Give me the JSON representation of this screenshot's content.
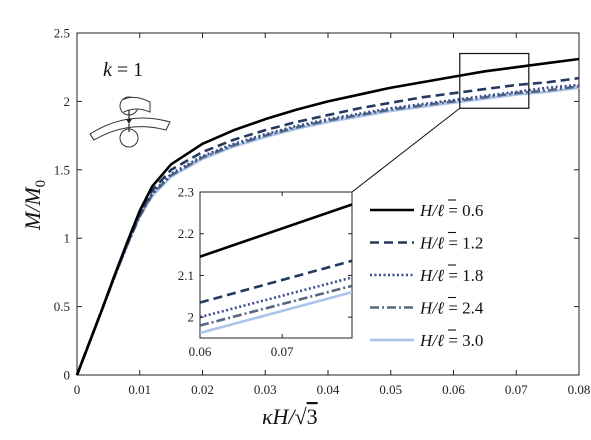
{
  "chart_data": {
    "type": "line",
    "xlabel": {
      "pre": "κH/",
      "root": "√",
      "post": "3"
    },
    "ylabel": {
      "base": "M/M",
      "sub": "0"
    },
    "xlim": [
      0,
      0.08
    ],
    "ylim": [
      0,
      2.5
    ],
    "x_ticks": [
      0,
      0.01,
      0.02,
      0.03,
      0.04,
      0.05,
      0.06,
      0.07,
      0.08
    ],
    "x_tick_labels": [
      "0",
      "0.01",
      "0.02",
      "0.03",
      "0.04",
      "0.05",
      "0.06",
      "0.07",
      "0.08"
    ],
    "y_ticks": [
      0,
      0.5,
      1,
      1.5,
      2,
      2.5
    ],
    "y_tick_labels": [
      "0",
      "0.5",
      "1",
      "1.5",
      "2",
      "2.5"
    ],
    "grid": false,
    "legend_position": "right",
    "annotation": {
      "lhs": "k",
      "eq": " = ",
      "rhs": "1"
    },
    "series": [
      {
        "name": "H/ℓ̄ = 0.6",
        "label_lhs": "H/ℓ",
        "label_rhs": " = 0.6",
        "color": "#000000",
        "style": "solid",
        "x": [
          0,
          0.002,
          0.004,
          0.006,
          0.008,
          0.01,
          0.012,
          0.015,
          0.02,
          0.025,
          0.03,
          0.035,
          0.04,
          0.045,
          0.05,
          0.055,
          0.06,
          0.065,
          0.07,
          0.075,
          0.08
        ],
        "y": [
          0,
          0.24,
          0.48,
          0.73,
          0.97,
          1.2,
          1.38,
          1.54,
          1.69,
          1.79,
          1.87,
          1.94,
          2.0,
          2.05,
          2.1,
          2.14,
          2.18,
          2.22,
          2.25,
          2.28,
          2.31
        ]
      },
      {
        "name": "H/ℓ̄ = 1.2",
        "label_lhs": "H/ℓ",
        "label_rhs": " = 1.2",
        "color": "#23395d",
        "style": "dashed",
        "x": [
          0,
          0.002,
          0.004,
          0.006,
          0.008,
          0.01,
          0.012,
          0.015,
          0.02,
          0.025,
          0.03,
          0.035,
          0.04,
          0.045,
          0.05,
          0.055,
          0.06,
          0.065,
          0.07,
          0.075,
          0.08
        ],
        "y": [
          0,
          0.24,
          0.48,
          0.73,
          0.96,
          1.18,
          1.35,
          1.5,
          1.63,
          1.72,
          1.79,
          1.85,
          1.9,
          1.95,
          1.99,
          2.03,
          2.06,
          2.09,
          2.12,
          2.14,
          2.17
        ]
      },
      {
        "name": "H/ℓ̄ = 1.8",
        "label_lhs": "H/ℓ",
        "label_rhs": " = 1.8",
        "color": "#3a4e8c",
        "style": "dotted",
        "x": [
          0,
          0.002,
          0.004,
          0.006,
          0.008,
          0.01,
          0.012,
          0.015,
          0.02,
          0.025,
          0.03,
          0.035,
          0.04,
          0.045,
          0.05,
          0.055,
          0.06,
          0.065,
          0.07,
          0.075,
          0.08
        ],
        "y": [
          0,
          0.24,
          0.48,
          0.72,
          0.95,
          1.17,
          1.33,
          1.47,
          1.6,
          1.69,
          1.76,
          1.82,
          1.87,
          1.91,
          1.95,
          1.98,
          2.01,
          2.04,
          2.07,
          2.1,
          2.12
        ]
      },
      {
        "name": "H/ℓ̄ = 2.4",
        "label_lhs": "H/ℓ",
        "label_rhs": " = 2.4",
        "color": "#56667f",
        "style": "dashdot",
        "x": [
          0,
          0.002,
          0.004,
          0.006,
          0.008,
          0.01,
          0.012,
          0.015,
          0.02,
          0.025,
          0.03,
          0.035,
          0.04,
          0.045,
          0.05,
          0.055,
          0.06,
          0.065,
          0.07,
          0.075,
          0.08
        ],
        "y": [
          0,
          0.24,
          0.48,
          0.72,
          0.95,
          1.16,
          1.32,
          1.46,
          1.59,
          1.68,
          1.75,
          1.81,
          1.86,
          1.9,
          1.94,
          1.97,
          2.0,
          2.03,
          2.06,
          2.08,
          2.11
        ]
      },
      {
        "name": "H/ℓ̄ = 3.0",
        "label_lhs": "H/ℓ",
        "label_rhs": " = 3.0",
        "color": "#aac4ec",
        "style": "solid",
        "x": [
          0,
          0.002,
          0.004,
          0.006,
          0.008,
          0.01,
          0.012,
          0.015,
          0.02,
          0.025,
          0.03,
          0.035,
          0.04,
          0.045,
          0.05,
          0.055,
          0.06,
          0.065,
          0.07,
          0.075,
          0.08
        ],
        "y": [
          0,
          0.24,
          0.48,
          0.72,
          0.95,
          1.16,
          1.31,
          1.45,
          1.58,
          1.67,
          1.74,
          1.8,
          1.85,
          1.89,
          1.93,
          1.96,
          1.99,
          2.02,
          2.05,
          2.07,
          2.1
        ]
      }
    ],
    "inset": {
      "xlim": [
        0.06,
        0.0785
      ],
      "ylim": [
        1.95,
        2.3
      ],
      "x_ticks": [
        0.06,
        0.07
      ],
      "x_tick_labels": [
        "0.06",
        "0.07"
      ],
      "y_ticks": [
        2.0,
        2.1,
        2.2,
        2.3
      ],
      "y_tick_labels": [
        "2",
        "2.1",
        "2.2",
        "2.3"
      ],
      "zoom_box": {
        "x": [
          0.061,
          0.072
        ],
        "y": [
          1.95,
          2.35
        ]
      }
    }
  }
}
